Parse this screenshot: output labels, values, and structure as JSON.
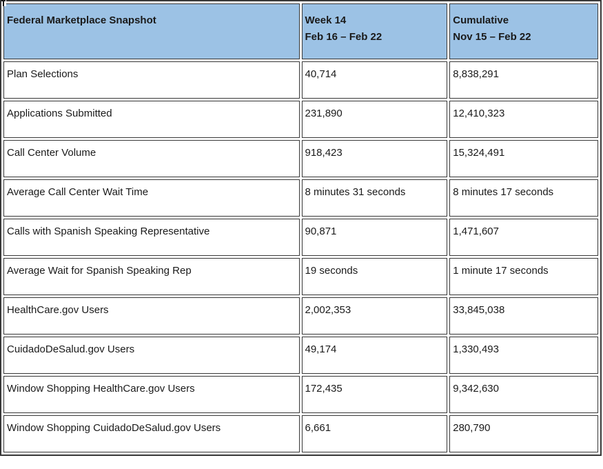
{
  "colors": {
    "header_bg": "#9cc2e5",
    "border": "#383838",
    "text": "#1a1a1a",
    "background": "#ffffff"
  },
  "table": {
    "header": {
      "metric": "Federal Marketplace Snapshot",
      "week_line1": "Week 14",
      "week_line2": "Feb 16 – Feb 22",
      "cumulative_line1": "Cumulative",
      "cumulative_line2": "Nov 15 – Feb 22"
    },
    "rows": [
      {
        "label": "Plan Selections",
        "week": "40,714",
        "cumulative": "8,838,291"
      },
      {
        "label": "Applications Submitted",
        "week": "231,890",
        "cumulative": "12,410,323"
      },
      {
        "label": "Call Center Volume",
        "week": "918,423",
        "cumulative": "15,324,491"
      },
      {
        "label": "Average Call Center Wait Time",
        "week": "8 minutes 31 seconds",
        "cumulative": "8 minutes 17 seconds"
      },
      {
        "label": "Calls with Spanish Speaking Representative",
        "week": "90,871",
        "cumulative": "1,471,607"
      },
      {
        "label": "Average Wait for Spanish Speaking Rep",
        "week": "19 seconds",
        "cumulative": "1 minute 17 seconds"
      },
      {
        "label": "HealthCare.gov Users",
        "week": "2,002,353",
        "cumulative": "33,845,038"
      },
      {
        "label": "CuidadoDeSalud.gov Users",
        "week": "49,174",
        "cumulative": "1,330,493"
      },
      {
        "label": "Window Shopping HealthCare.gov Users",
        "week": "172,435",
        "cumulative": "9,342,630"
      },
      {
        "label": "Window Shopping CuidadoDeSalud.gov Users",
        "week": "6,661",
        "cumulative": "280,790"
      }
    ]
  }
}
